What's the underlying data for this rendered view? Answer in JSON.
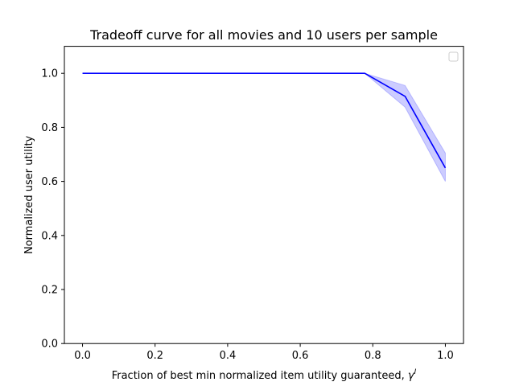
{
  "chart_data": {
    "type": "line",
    "title": "Tradeoff curve for all movies and 10 users per sample",
    "xlabel": "Fraction of best min normalized item utility guaranteed,",
    "xlabel_symbol": "γ",
    "xlabel_superscript": "I",
    "ylabel": "Normalized user utility",
    "xlim": [
      -0.05,
      1.05
    ],
    "ylim": [
      0.0,
      1.1
    ],
    "x_ticks": [
      0.0,
      0.2,
      0.4,
      0.6,
      0.8,
      1.0
    ],
    "x_tick_labels": [
      "0.0",
      "0.2",
      "0.4",
      "0.6",
      "0.8",
      "1.0"
    ],
    "y_ticks": [
      0.0,
      0.2,
      0.4,
      0.6,
      0.8,
      1.0
    ],
    "y_tick_labels": [
      "0.0",
      "0.2",
      "0.4",
      "0.6",
      "0.8",
      "1.0"
    ],
    "grid": false,
    "legend": {
      "placement": "top-right",
      "entries": []
    },
    "series": [
      {
        "color": "#0000ff",
        "band_color": "#0000ff",
        "band_opacity": 0.2,
        "x": [
          0.0,
          0.111,
          0.222,
          0.333,
          0.444,
          0.556,
          0.667,
          0.778,
          0.889,
          1.0
        ],
        "y": [
          1.0,
          1.0,
          1.0,
          1.0,
          1.0,
          1.0,
          1.0,
          1.0,
          0.915,
          0.65
        ],
        "y_lower": [
          1.0,
          1.0,
          1.0,
          1.0,
          1.0,
          1.0,
          1.0,
          1.0,
          0.875,
          0.6
        ],
        "y_upper": [
          1.0,
          1.0,
          1.0,
          1.0,
          1.0,
          1.0,
          1.0,
          1.0,
          0.955,
          0.705
        ]
      }
    ]
  }
}
